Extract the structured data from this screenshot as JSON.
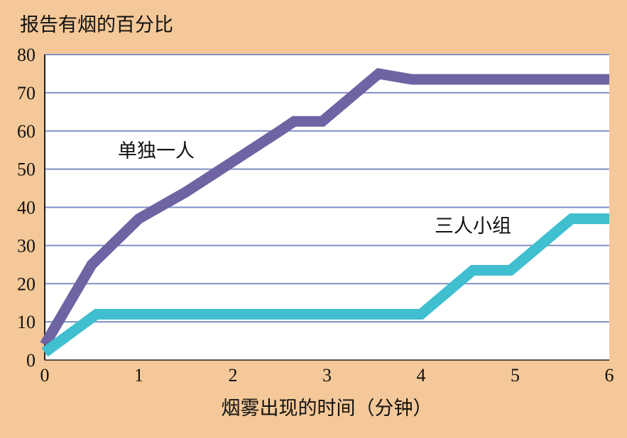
{
  "chart_data": {
    "type": "line",
    "title": "",
    "ylabel": "报告有烟的百分比",
    "xlabel": "烟雾出现的时间（分钟）",
    "xlim": [
      0,
      6
    ],
    "ylim": [
      0,
      80
    ],
    "x_ticks": [
      "0",
      "1",
      "2",
      "3",
      "4",
      "5",
      "6"
    ],
    "y_ticks": [
      "0",
      "10",
      "20",
      "30",
      "40",
      "50",
      "60",
      "70",
      "80"
    ],
    "grid": true,
    "series": [
      {
        "name": "单独一人",
        "color": "#6e64a3",
        "points": [
          [
            0,
            4
          ],
          [
            0.5,
            25
          ],
          [
            1,
            37
          ],
          [
            1.5,
            44
          ],
          [
            2,
            52
          ],
          [
            2.5,
            60
          ],
          [
            2.65,
            62.5
          ],
          [
            2.95,
            62.5
          ],
          [
            3.55,
            75
          ],
          [
            3.9,
            73.5
          ],
          [
            6,
            73.5
          ]
        ]
      },
      {
        "name": "三人小组",
        "color": "#3fbfcf",
        "points": [
          [
            0,
            2
          ],
          [
            0.55,
            12
          ],
          [
            4,
            12
          ],
          [
            4.55,
            23.5
          ],
          [
            4.95,
            23.5
          ],
          [
            5.6,
            37
          ],
          [
            6,
            37
          ]
        ]
      }
    ]
  }
}
